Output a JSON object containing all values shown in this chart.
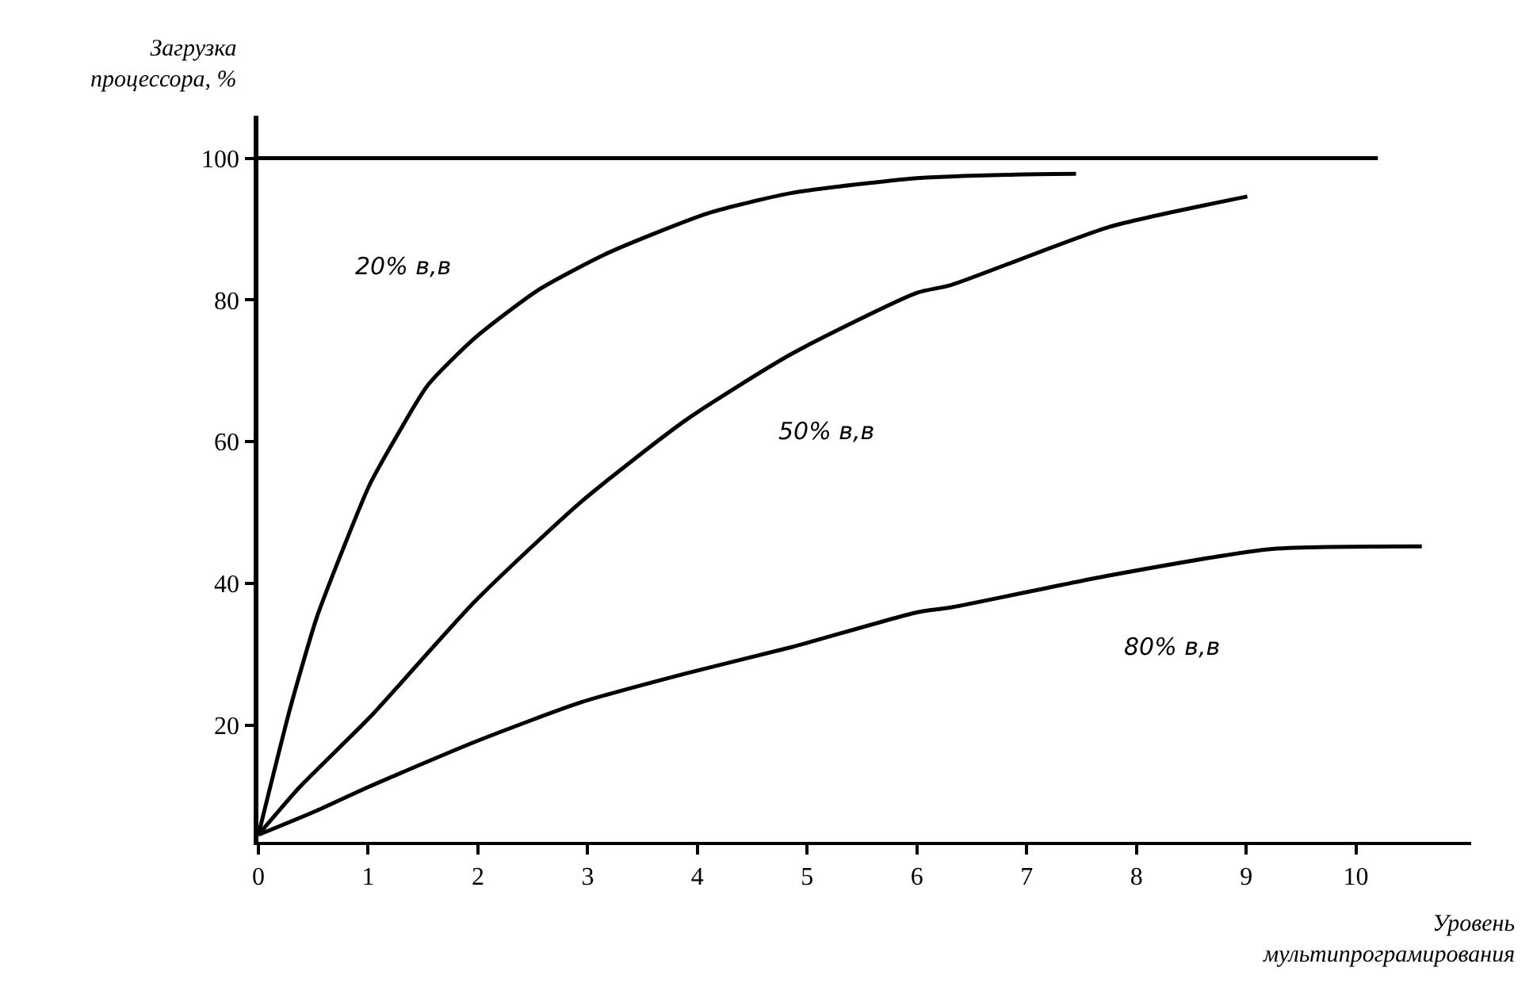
{
  "chart_data": {
    "type": "line",
    "xlabel": "Уровень\nмультипрограмирования",
    "ylabel": "Загрузка\nпроцессора, %",
    "xlim": [
      0,
      11.05
    ],
    "ylim": [
      3.5,
      106
    ],
    "xticks": [
      0,
      1,
      2,
      3,
      4,
      5,
      6,
      7,
      8,
      9,
      10
    ],
    "yticks": [
      20,
      40,
      60,
      80,
      100
    ],
    "grid": false,
    "legend": false,
    "marker": "none",
    "line_style": "solid",
    "series": [
      {
        "color": "#000000",
        "x": [
          0,
          10.2
        ],
        "values": [
          100,
          100
        ]
      },
      {
        "name": "20% в,в",
        "color": "#000000",
        "x": [
          0,
          0.29,
          0.53,
          0.77,
          1.01,
          1.25,
          1.54,
          1.97,
          2.55,
          3.18,
          4.09,
          4.86,
          6.0,
          6.9,
          7.45
        ],
        "values": [
          4.5,
          22.4,
          35.1,
          44.8,
          53.8,
          60.5,
          67.9,
          74.6,
          81.4,
          86.6,
          92.2,
          95.1,
          97.2,
          97.7,
          97.8
        ]
      },
      {
        "name": "50% в,в",
        "color": "#000000",
        "x": [
          0,
          0.38,
          1.01,
          1.97,
          2.94,
          3.9,
          4.86,
          6.0,
          6.31,
          7.75,
          9.01
        ],
        "values": [
          4.5,
          11.3,
          21.0,
          37.4,
          51.5,
          63.1,
          72.4,
          81.0,
          82.1,
          90.3,
          94.6
        ]
      },
      {
        "name": "80% в,в",
        "color": "#000000",
        "x": [
          0,
          0.53,
          1.01,
          1.97,
          2.94,
          3.9,
          4.86,
          6.0,
          6.31,
          7.75,
          9.2,
          10.6
        ],
        "values": [
          4.5,
          7.9,
          11.3,
          17.6,
          23.2,
          27.3,
          31.0,
          35.9,
          36.6,
          41.1,
          44.8,
          45.2
        ]
      }
    ]
  }
}
